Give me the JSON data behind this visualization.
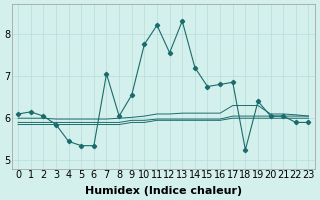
{
  "xlabel": "Humidex (Indice chaleur)",
  "bg_color": "#d4f0ec",
  "line_color": "#1a6b6b",
  "grid_color": "#b8dcd8",
  "xlim": [
    -0.5,
    23.5
  ],
  "ylim": [
    4.8,
    8.7
  ],
  "yticks": [
    5,
    6,
    7,
    8
  ],
  "xticks": [
    0,
    1,
    2,
    3,
    4,
    5,
    6,
    7,
    8,
    9,
    10,
    11,
    12,
    13,
    14,
    15,
    16,
    17,
    18,
    19,
    20,
    21,
    22,
    23
  ],
  "main_series": [
    6.1,
    6.15,
    6.05,
    5.85,
    5.45,
    5.35,
    5.35,
    7.05,
    6.05,
    6.55,
    7.75,
    8.2,
    7.55,
    8.3,
    7.2,
    6.75,
    6.8,
    6.85,
    5.25,
    6.4,
    6.05,
    6.05,
    5.9,
    5.9
  ],
  "flat_lines": [
    [
      5.85,
      5.85,
      5.85,
      5.85,
      5.85,
      5.85,
      5.85,
      5.85,
      5.85,
      5.9,
      5.9,
      5.95,
      5.95,
      5.95,
      5.95,
      5.95,
      5.95,
      6.0,
      6.0,
      6.0,
      6.0,
      6.0,
      6.0,
      6.0
    ],
    [
      5.9,
      5.9,
      5.9,
      5.9,
      5.9,
      5.9,
      5.9,
      5.9,
      5.9,
      5.95,
      5.95,
      5.98,
      5.98,
      5.98,
      5.98,
      5.98,
      5.98,
      6.05,
      6.05,
      6.05,
      6.05,
      6.05,
      6.05,
      6.05
    ],
    [
      6.0,
      6.0,
      6.0,
      5.98,
      5.98,
      5.98,
      5.98,
      5.98,
      6.0,
      6.02,
      6.05,
      6.1,
      6.1,
      6.12,
      6.12,
      6.12,
      6.12,
      6.3,
      6.3,
      6.3,
      6.1,
      6.1,
      6.08,
      6.05
    ]
  ],
  "fontsize_xlabel": 8,
  "fontsize_ticks": 7
}
